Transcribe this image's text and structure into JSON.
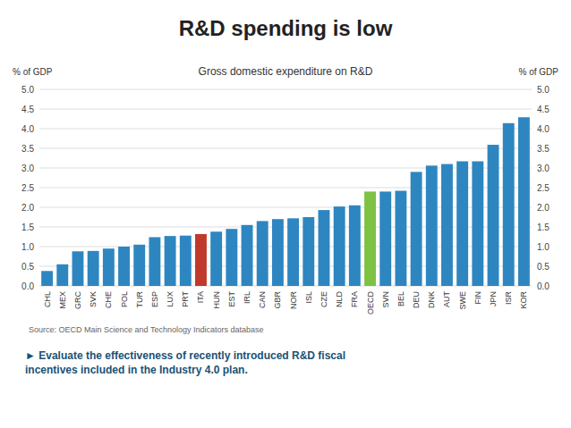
{
  "chart_data": {
    "type": "bar",
    "title": "R&D spending is low",
    "subtitle": "Gross domestic expenditure on R&D",
    "ylabel": "% of GDP",
    "y2label": "% of GDP",
    "annotations": [
      "Source: OECD Main Science and Technology Indicators database",
      "► Evaluate the effectiveness of recently introduced R&D fiscal\nincentives included in the Industry 4.0 plan."
    ],
    "categories": [
      "CHL",
      "MEX",
      "GRC",
      "SVK",
      "CHE",
      "POL",
      "TUR",
      "ESP",
      "LUX",
      "PRT",
      "ITA",
      "HUN",
      "EST",
      "IRL",
      "CAN",
      "GBR",
      "NOR",
      "ISL",
      "CZE",
      "NLD",
      "FRA",
      "OECD",
      "SVN",
      "BEL",
      "DEU",
      "DNK",
      "AUT",
      "SWE",
      "FIN",
      "JPN",
      "ISR",
      "KOR"
    ],
    "values": [
      0.38,
      0.55,
      0.88,
      0.89,
      0.95,
      1.0,
      1.05,
      1.24,
      1.27,
      1.28,
      1.32,
      1.38,
      1.45,
      1.55,
      1.65,
      1.7,
      1.72,
      1.75,
      1.93,
      2.02,
      2.05,
      2.4,
      2.4,
      2.42,
      2.9,
      3.06,
      3.1,
      3.17,
      3.17,
      3.59,
      4.14,
      4.29
    ],
    "colors": [
      "#2e86c1",
      "#2e86c1",
      "#2e86c1",
      "#2e86c1",
      "#2e86c1",
      "#2e86c1",
      "#2e86c1",
      "#2e86c1",
      "#2e86c1",
      "#2e86c1",
      "#c0392b",
      "#2e86c1",
      "#2e86c1",
      "#2e86c1",
      "#2e86c1",
      "#2e86c1",
      "#2e86c1",
      "#2e86c1",
      "#2e86c1",
      "#2e86c1",
      "#2e86c1",
      "#7dc243",
      "#2e86c1",
      "#2e86c1",
      "#2e86c1",
      "#2e86c1",
      "#2e86c1",
      "#2e86c1",
      "#2e86c1",
      "#2e86c1",
      "#2e86c1",
      "#2e86c1"
    ],
    "ylim": [
      0,
      5.0
    ],
    "yticks": [
      {
        "value": 0.0,
        "label": "0.0"
      },
      {
        "value": 0.5,
        "label": "0.5"
      },
      {
        "value": 1.0,
        "label": "1.0"
      },
      {
        "value": 1.5,
        "label": "1.5"
      },
      {
        "value": 2.0,
        "label": "2.0"
      },
      {
        "value": 2.5,
        "label": "2.5"
      },
      {
        "value": 3.0,
        "label": "3.0"
      },
      {
        "value": 3.5,
        "label": "3.5"
      },
      {
        "value": 4.0,
        "label": "4.0"
      },
      {
        "value": 4.5,
        "label": "4.5"
      },
      {
        "value": 5.0,
        "label": "5.0"
      }
    ],
    "y2lim": [
      0,
      5.0
    ],
    "y2ticks": [
      {
        "value": 0.0,
        "label": "0.0"
      },
      {
        "value": 0.5,
        "label": "0.5"
      },
      {
        "value": 1.0,
        "label": "1.0"
      },
      {
        "value": 1.5,
        "label": "1.5"
      },
      {
        "value": 2.0,
        "label": "2.0"
      },
      {
        "value": 2.5,
        "label": "2.5"
      },
      {
        "value": 3.0,
        "label": "3.0"
      },
      {
        "value": 3.5,
        "label": "3.5"
      },
      {
        "value": 4.0,
        "label": "4.0"
      },
      {
        "value": 4.5,
        "label": "4.5"
      },
      {
        "value": 5.0,
        "label": "5.0"
      }
    ],
    "grid": true
  }
}
